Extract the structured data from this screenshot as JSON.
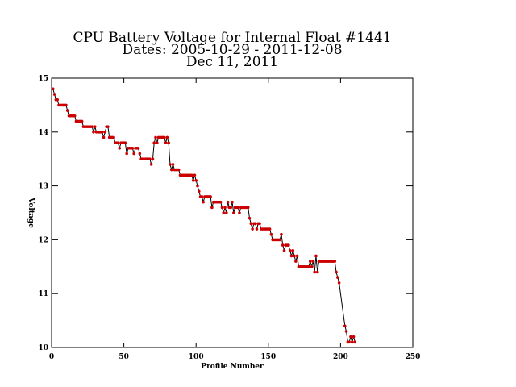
{
  "chart_data": {
    "type": "line",
    "title": [
      "CPU Battery Voltage for Internal Float #1441",
      "Dates:  2005-10-29 -  2011-12-08",
      "Dec 11, 2011"
    ],
    "xlabel": "Profile Number",
    "ylabel": "Voltage",
    "xlim": [
      0,
      250
    ],
    "xticks": [
      0,
      50,
      100,
      150,
      200,
      250
    ],
    "ylim": [
      10,
      15
    ],
    "yticks": [
      10,
      11,
      12,
      13,
      14,
      15
    ],
    "line_color": "#000000",
    "marker_color": "#cc0000",
    "x": [
      1,
      2,
      3,
      4,
      5,
      6,
      7,
      8,
      9,
      10,
      11,
      12,
      13,
      14,
      15,
      16,
      17,
      18,
      19,
      20,
      21,
      22,
      23,
      24,
      25,
      26,
      27,
      28,
      29,
      30,
      31,
      32,
      33,
      34,
      35,
      36,
      37,
      38,
      39,
      40,
      41,
      42,
      43,
      44,
      45,
      46,
      47,
      48,
      49,
      50,
      51,
      52,
      53,
      54,
      55,
      56,
      57,
      58,
      59,
      60,
      61,
      62,
      63,
      64,
      65,
      66,
      67,
      68,
      69,
      70,
      71,
      72,
      73,
      74,
      75,
      76,
      77,
      78,
      79,
      80,
      81,
      82,
      83,
      84,
      85,
      86,
      87,
      88,
      89,
      90,
      91,
      92,
      93,
      94,
      95,
      96,
      97,
      98,
      99,
      100,
      101,
      102,
      103,
      104,
      105,
      106,
      107,
      108,
      109,
      110,
      111,
      112,
      113,
      114,
      115,
      116,
      117,
      118,
      119,
      120,
      121,
      122,
      123,
      124,
      125,
      126,
      127,
      128,
      129,
      130,
      131,
      132,
      133,
      134,
      135,
      136,
      137,
      138,
      139,
      140,
      141,
      142,
      143,
      144,
      145,
      146,
      147,
      148,
      149,
      150,
      151,
      152,
      153,
      154,
      155,
      156,
      157,
      158,
      159,
      160,
      161,
      162,
      163,
      164,
      165,
      166,
      167,
      168,
      169,
      170,
      171,
      172,
      173,
      174,
      175,
      176,
      177,
      178,
      179,
      180,
      181,
      182,
      183,
      184,
      185,
      186,
      187,
      188,
      189,
      190,
      191,
      192,
      193,
      194,
      195,
      196,
      197,
      198,
      199,
      203,
      204,
      205,
      206,
      207,
      208,
      209,
      210
    ],
    "values": [
      14.8,
      14.7,
      14.6,
      14.6,
      14.5,
      14.5,
      14.5,
      14.5,
      14.5,
      14.5,
      14.4,
      14.3,
      14.3,
      14.3,
      14.3,
      14.3,
      14.2,
      14.2,
      14.2,
      14.2,
      14.2,
      14.1,
      14.1,
      14.1,
      14.1,
      14.1,
      14.1,
      14.1,
      14.0,
      14.1,
      14.0,
      14.0,
      14.0,
      14.0,
      14.0,
      13.9,
      14.0,
      14.1,
      14.1,
      13.9,
      13.9,
      13.9,
      13.9,
      13.8,
      13.8,
      13.8,
      13.7,
      13.8,
      13.8,
      13.8,
      13.8,
      13.6,
      13.7,
      13.7,
      13.7,
      13.7,
      13.6,
      13.7,
      13.7,
      13.7,
      13.6,
      13.5,
      13.5,
      13.5,
      13.5,
      13.5,
      13.5,
      13.5,
      13.4,
      13.5,
      13.8,
      13.9,
      13.8,
      13.9,
      13.9,
      13.9,
      13.9,
      13.9,
      13.8,
      13.9,
      13.8,
      13.4,
      13.3,
      13.4,
      13.3,
      13.3,
      13.3,
      13.3,
      13.2,
      13.2,
      13.2,
      13.2,
      13.2,
      13.2,
      13.2,
      13.2,
      13.2,
      13.1,
      13.2,
      13.1,
      13.0,
      12.9,
      12.8,
      12.8,
      12.7,
      12.8,
      12.8,
      12.8,
      12.8,
      12.8,
      12.6,
      12.7,
      12.7,
      12.7,
      12.7,
      12.7,
      12.7,
      12.6,
      12.5,
      12.6,
      12.5,
      12.7,
      12.6,
      12.6,
      12.7,
      12.5,
      12.6,
      12.6,
      12.6,
      12.5,
      12.6,
      12.6,
      12.6,
      12.6,
      12.6,
      12.6,
      12.4,
      12.3,
      12.2,
      12.3,
      12.3,
      12.2,
      12.3,
      12.3,
      12.2,
      12.2,
      12.2,
      12.2,
      12.2,
      12.2,
      12.2,
      12.1,
      12.0,
      12.0,
      12.0,
      12.0,
      12.0,
      12.0,
      12.1,
      11.9,
      11.8,
      11.9,
      11.9,
      11.9,
      11.8,
      11.7,
      11.8,
      11.7,
      11.6,
      11.7,
      11.5,
      11.5,
      11.5,
      11.5,
      11.5,
      11.5,
      11.5,
      11.5,
      11.6,
      11.5,
      11.6,
      11.4,
      11.7,
      11.4,
      11.6,
      11.6,
      11.6,
      11.6,
      11.6,
      11.6,
      11.6,
      11.6,
      11.6,
      11.6,
      11.6,
      11.6,
      11.4,
      11.3,
      11.2,
      10.4,
      10.3,
      10.1,
      10.1,
      10.2,
      10.1,
      10.2,
      10.1
    ]
  }
}
